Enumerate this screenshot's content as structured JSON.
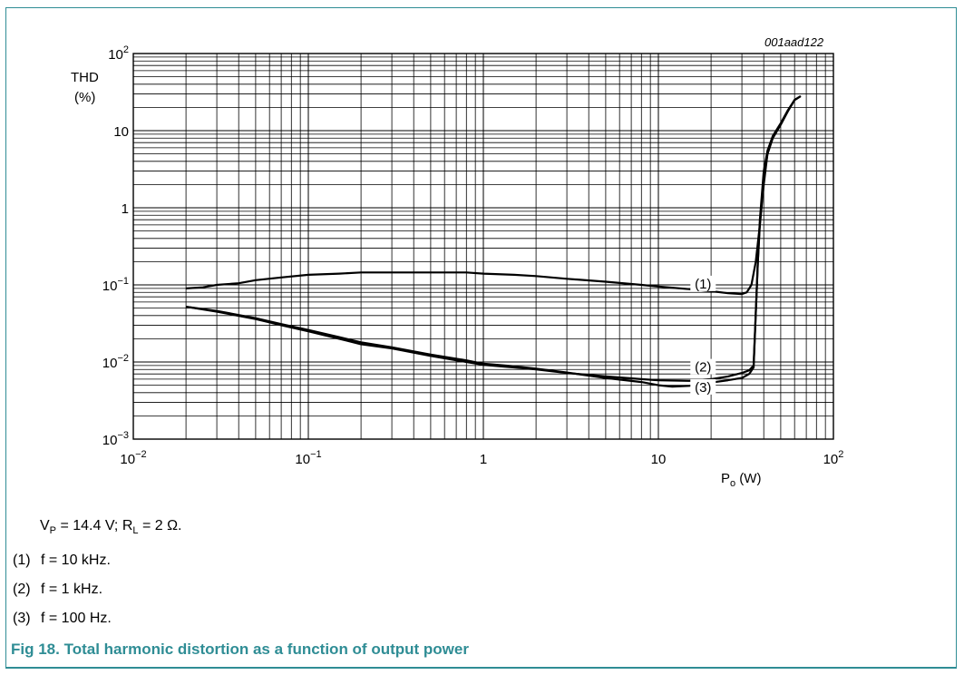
{
  "chart_data": {
    "type": "line",
    "x_scale": "log",
    "y_scale": "log",
    "xlim": [
      0.01,
      100
    ],
    "ylim": [
      0.001,
      100
    ],
    "grid": true,
    "x_ticks": [
      {
        "value": 0.01,
        "base": "10",
        "exp": "−2"
      },
      {
        "value": 0.1,
        "base": "10",
        "exp": "−1"
      },
      {
        "value": 1,
        "base": "1",
        "exp": ""
      },
      {
        "value": 10,
        "base": "10",
        "exp": ""
      },
      {
        "value": 100,
        "base": "10",
        "exp": "2"
      }
    ],
    "y_ticks": [
      {
        "value": 100,
        "base": "10",
        "exp": "2"
      },
      {
        "value": 10,
        "base": "10",
        "exp": ""
      },
      {
        "value": 1,
        "base": "1",
        "exp": ""
      },
      {
        "value": 0.1,
        "base": "10",
        "exp": "−1"
      },
      {
        "value": 0.01,
        "base": "10",
        "exp": "−2"
      },
      {
        "value": 0.001,
        "base": "10",
        "exp": "−3"
      }
    ],
    "xlabel_main": "P",
    "xlabel_sub": "o",
    "xlabel_unit": " (W)",
    "ylabel_line1": "THD",
    "ylabel_line2": "(%)",
    "series": [
      {
        "label": "(1)",
        "label_at": [
          18,
          0.09
        ],
        "points": [
          [
            0.02,
            0.09
          ],
          [
            0.025,
            0.093
          ],
          [
            0.03,
            0.1
          ],
          [
            0.04,
            0.105
          ],
          [
            0.05,
            0.115
          ],
          [
            0.07,
            0.125
          ],
          [
            0.1,
            0.135
          ],
          [
            0.15,
            0.14
          ],
          [
            0.2,
            0.145
          ],
          [
            0.3,
            0.145
          ],
          [
            0.5,
            0.145
          ],
          [
            0.8,
            0.145
          ],
          [
            1,
            0.14
          ],
          [
            1.5,
            0.135
          ],
          [
            2,
            0.13
          ],
          [
            3,
            0.12
          ],
          [
            5,
            0.11
          ],
          [
            8,
            0.1
          ],
          [
            10,
            0.095
          ],
          [
            15,
            0.088
          ],
          [
            20,
            0.083
          ],
          [
            25,
            0.078
          ],
          [
            30,
            0.076
          ],
          [
            32,
            0.08
          ],
          [
            34,
            0.1
          ],
          [
            36,
            0.2
          ],
          [
            38,
            0.6
          ],
          [
            40,
            2
          ],
          [
            42,
            5
          ],
          [
            45,
            8
          ],
          [
            50,
            12
          ],
          [
            55,
            18
          ],
          [
            60,
            25
          ],
          [
            65,
            28
          ]
        ]
      },
      {
        "label": "(2)",
        "label_at": [
          18,
          0.0075
        ],
        "points": [
          [
            0.02,
            0.052
          ],
          [
            0.03,
            0.045
          ],
          [
            0.05,
            0.036
          ],
          [
            0.07,
            0.03
          ],
          [
            0.1,
            0.025
          ],
          [
            0.15,
            0.02
          ],
          [
            0.2,
            0.017
          ],
          [
            0.3,
            0.015
          ],
          [
            0.5,
            0.012
          ],
          [
            0.8,
            0.01
          ],
          [
            1,
            0.0092
          ],
          [
            1.5,
            0.0085
          ],
          [
            2,
            0.008
          ],
          [
            3,
            0.0072
          ],
          [
            5,
            0.0065
          ],
          [
            8,
            0.006
          ],
          [
            10,
            0.0058
          ],
          [
            15,
            0.0057
          ],
          [
            20,
            0.006
          ],
          [
            25,
            0.0065
          ],
          [
            30,
            0.0072
          ],
          [
            33,
            0.0078
          ],
          [
            35,
            0.009
          ],
          [
            37,
            0.2
          ],
          [
            38,
            0.6
          ],
          [
            40,
            2.5
          ],
          [
            42,
            5
          ],
          [
            45,
            8
          ],
          [
            50,
            12
          ],
          [
            55,
            18
          ],
          [
            60,
            25
          ],
          [
            65,
            28
          ]
        ]
      },
      {
        "label": "(3)",
        "label_at": [
          18,
          0.0041
        ],
        "points": [
          [
            0.02,
            0.052
          ],
          [
            0.03,
            0.046
          ],
          [
            0.05,
            0.037
          ],
          [
            0.07,
            0.031
          ],
          [
            0.1,
            0.026
          ],
          [
            0.15,
            0.021
          ],
          [
            0.2,
            0.018
          ],
          [
            0.3,
            0.0155
          ],
          [
            0.5,
            0.0125
          ],
          [
            0.8,
            0.0105
          ],
          [
            1,
            0.0095
          ],
          [
            1.5,
            0.0088
          ],
          [
            2,
            0.0082
          ],
          [
            3,
            0.0073
          ],
          [
            5,
            0.0062
          ],
          [
            8,
            0.0055
          ],
          [
            10,
            0.005
          ],
          [
            12,
            0.0048
          ],
          [
            15,
            0.0049
          ],
          [
            20,
            0.0054
          ],
          [
            25,
            0.0058
          ],
          [
            30,
            0.0062
          ],
          [
            33,
            0.007
          ],
          [
            35,
            0.0085
          ],
          [
            37,
            0.2
          ],
          [
            38,
            0.7
          ],
          [
            40,
            3
          ],
          [
            42,
            5.5
          ],
          [
            45,
            8.5
          ],
          [
            50,
            12.5
          ],
          [
            55,
            18.5
          ],
          [
            60,
            25
          ],
          [
            65,
            28
          ]
        ]
      }
    ]
  },
  "figure_ref": "001aad122",
  "conditions": {
    "vp_main": "V",
    "vp_sub": "P",
    "vp_val": " = 14.4 V; ",
    "rl_main": "R",
    "rl_sub": "L",
    "rl_val": " = 2 Ω."
  },
  "notes": [
    {
      "num": "(1)",
      "text": "f = 10 kHz."
    },
    {
      "num": "(2)",
      "text": "f = 1 kHz."
    },
    {
      "num": "(3)",
      "text": "f = 100 Hz."
    }
  ],
  "caption": "Fig 18.  Total harmonic distortion as a function of output power"
}
